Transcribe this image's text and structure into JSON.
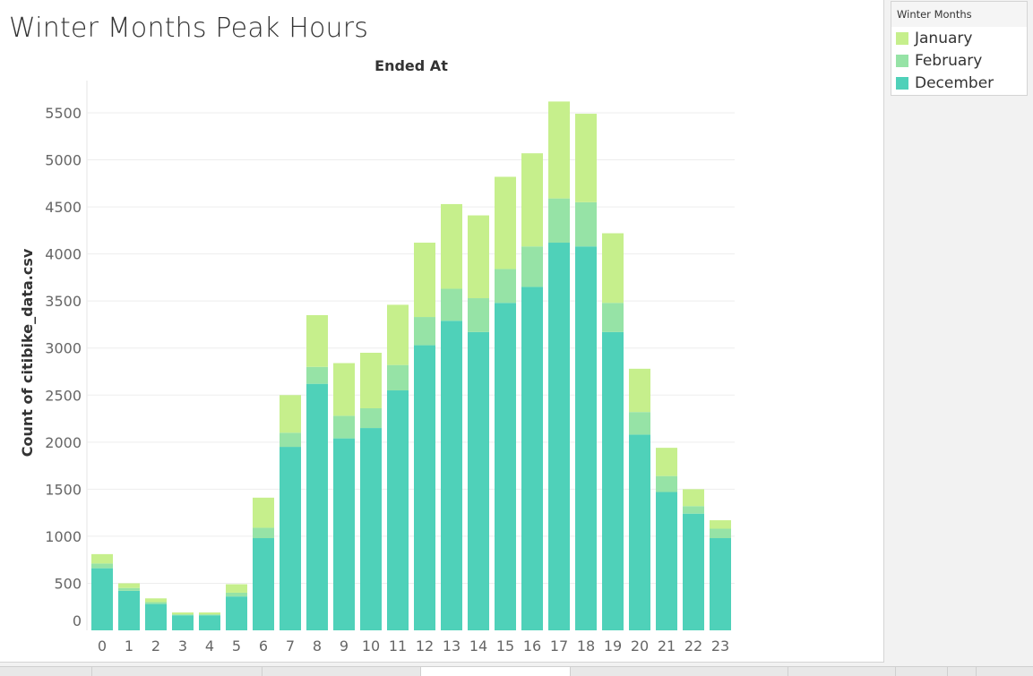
{
  "sheet": {
    "title": "Winter Months Peak Hours"
  },
  "legend": {
    "title": "Winter Months",
    "items": [
      {
        "label": "January",
        "color": "#c6ef8c"
      },
      {
        "label": "February",
        "color": "#96e3a6"
      },
      {
        "label": "December",
        "color": "#4fd1b9"
      }
    ]
  },
  "chart_data": {
    "type": "bar",
    "stacked": true,
    "title": "Ended At",
    "xlabel": "",
    "ylabel": "Count of citibike_data.csv",
    "categories": [
      "0",
      "1",
      "2",
      "3",
      "4",
      "5",
      "6",
      "7",
      "8",
      "9",
      "10",
      "11",
      "12",
      "13",
      "14",
      "15",
      "16",
      "17",
      "18",
      "19",
      "20",
      "21",
      "22",
      "23"
    ],
    "series": [
      {
        "name": "December",
        "color": "#4fd1b9",
        "values": [
          660,
          420,
          280,
          160,
          160,
          360,
          980,
          1950,
          2620,
          2040,
          2150,
          2550,
          3030,
          3290,
          3170,
          3480,
          3650,
          4120,
          4080,
          3170,
          2080,
          1470,
          1240,
          980
        ]
      },
      {
        "name": "February",
        "color": "#96e3a6",
        "values": [
          50,
          30,
          20,
          10,
          10,
          40,
          110,
          150,
          180,
          240,
          210,
          270,
          300,
          340,
          360,
          360,
          430,
          470,
          470,
          310,
          240,
          170,
          80,
          100
        ]
      },
      {
        "name": "January",
        "color": "#c6ef8c",
        "values": [
          100,
          50,
          40,
          20,
          20,
          90,
          320,
          400,
          550,
          560,
          590,
          640,
          790,
          900,
          880,
          980,
          990,
          1030,
          940,
          740,
          460,
          300,
          180,
          90
        ]
      }
    ],
    "yticks": [
      0,
      500,
      1000,
      1500,
      2000,
      2500,
      3000,
      3500,
      4000,
      4500,
      5000,
      5500
    ],
    "ylim": [
      0,
      5800
    ],
    "grid": true,
    "legend_position": "right"
  }
}
